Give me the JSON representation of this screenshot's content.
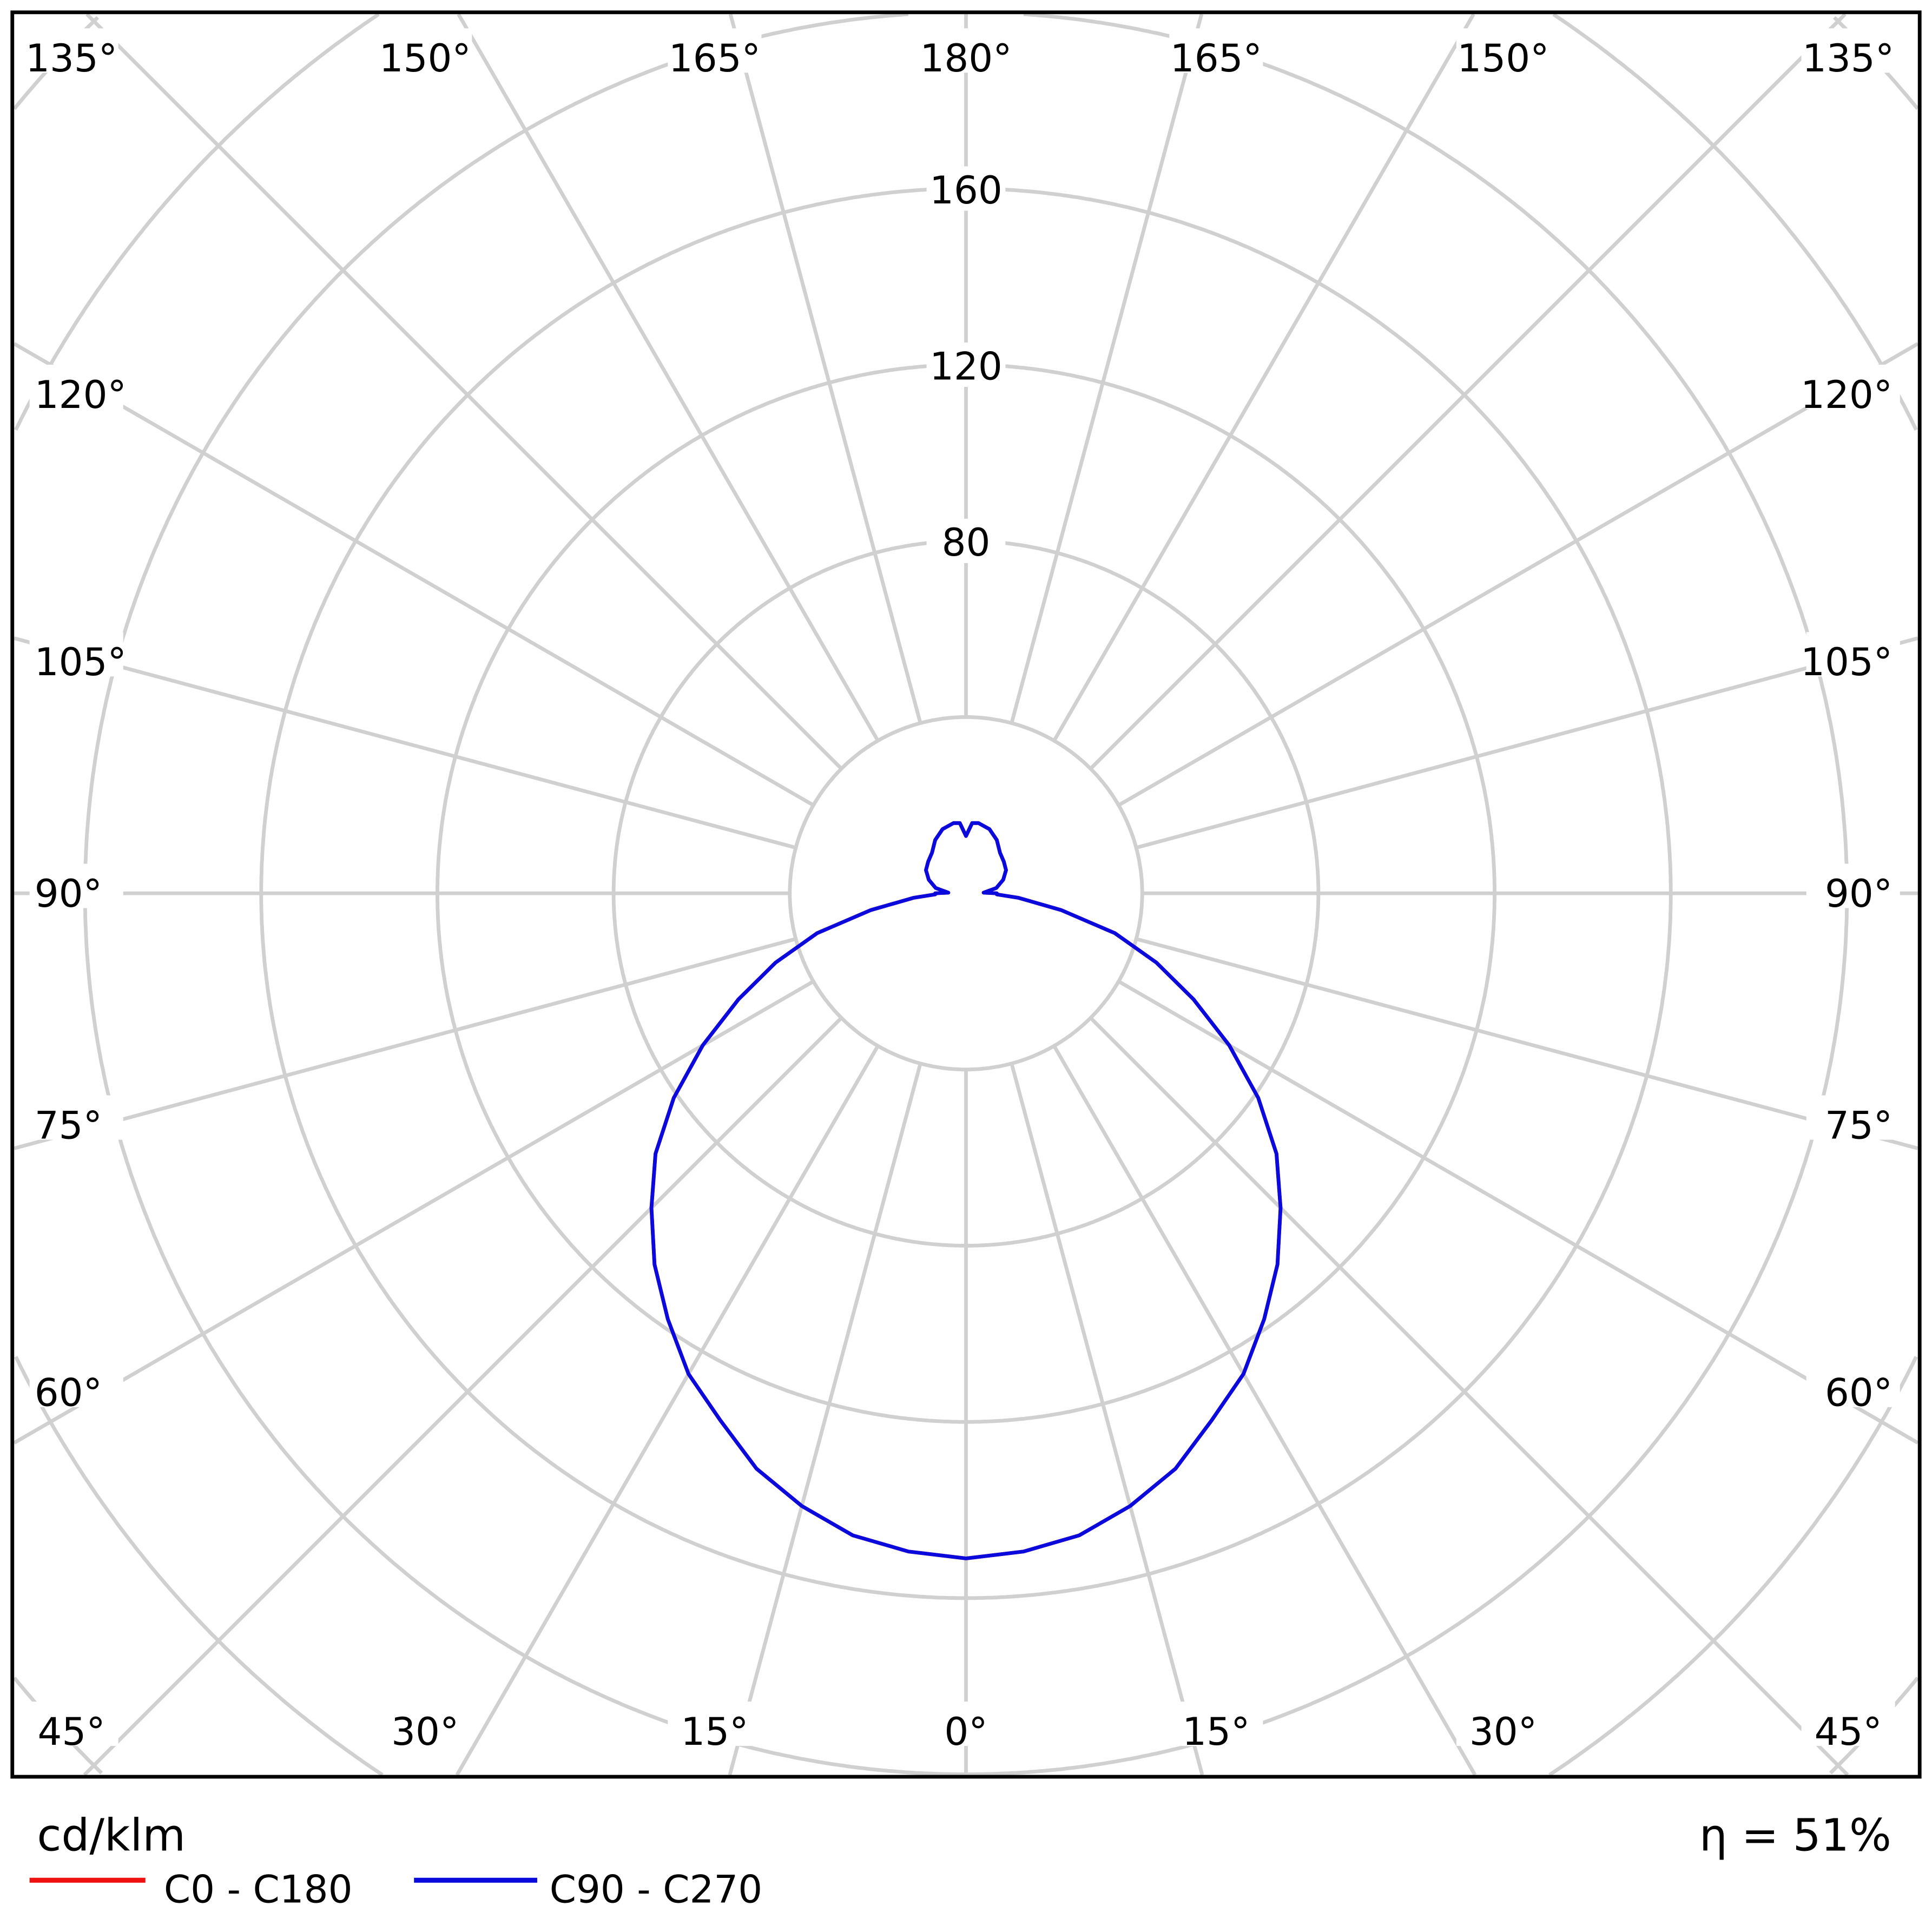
{
  "chart_data": {
    "type": "polar-line",
    "unit_label": "cd/klm",
    "efficiency_label": "η = 51%",
    "radial_ticks": [
      40,
      80,
      120,
      160,
      200,
      240,
      280
    ],
    "radial_tick_labels": [
      "80",
      "120",
      "160"
    ],
    "angle_labels_top": [
      "135°",
      "150°",
      "165°",
      "180°",
      "165°",
      "150°",
      "135°"
    ],
    "angle_labels_left": [
      "120°",
      "105°",
      "90°",
      "75°",
      "60°"
    ],
    "angle_labels_right": [
      "120°",
      "105°",
      "90°",
      "75°",
      "60°"
    ],
    "angle_labels_bottom": [
      "45°",
      "30°",
      "15°",
      "0°",
      "15°",
      "30°",
      "45°"
    ],
    "gamma": [
      0,
      5,
      10,
      15,
      20,
      25,
      30,
      35,
      40,
      45,
      50,
      55,
      60,
      65,
      70,
      75,
      80,
      85,
      88,
      90,
      92,
      100,
      110,
      120,
      130,
      140,
      150,
      160,
      170,
      175,
      180
    ],
    "series": [
      {
        "name": "C0 - C180",
        "color": "#ee1111",
        "values": [
          151,
          150,
          148,
          144,
          139,
          132,
          126,
          118,
          110,
          101,
          92,
          81,
          69,
          57,
          46,
          35,
          22,
          12,
          7,
          7,
          4,
          7,
          9,
          10.5,
          11.2,
          12,
          14,
          15.5,
          16.2,
          16,
          13
        ]
      },
      {
        "name": "C90 - C270",
        "color": "#0a0adc",
        "values": [
          151,
          150,
          148,
          144,
          139,
          132,
          126,
          118,
          110,
          101,
          92,
          81,
          69,
          57,
          46,
          35,
          22,
          12,
          7,
          7,
          4,
          7,
          9,
          10.5,
          11.2,
          12,
          14,
          15.5,
          16.2,
          16,
          13
        ]
      }
    ],
    "grid": true,
    "legend": "bottom-left"
  }
}
